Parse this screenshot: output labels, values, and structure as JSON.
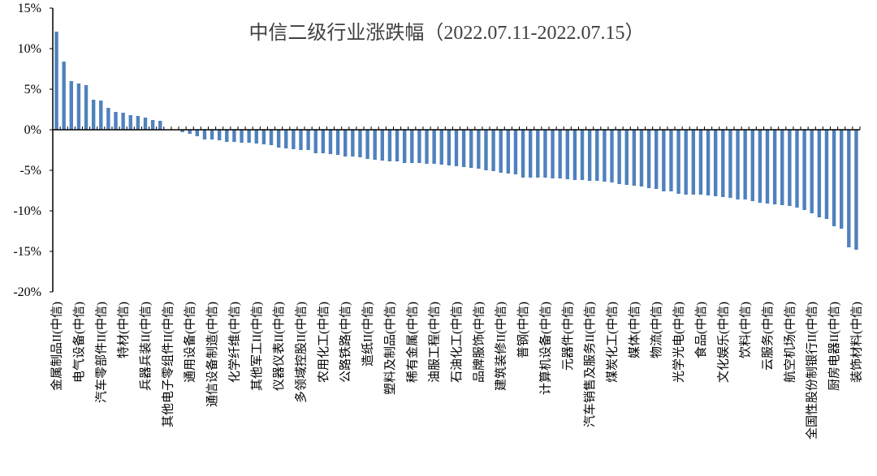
{
  "chart_data": {
    "type": "bar",
    "title": "中信二级行业涨跌幅（2022.07.11-2022.07.15）",
    "xlabel": "",
    "ylabel": "",
    "ylim": [
      -20,
      15
    ],
    "yticks": [
      "15%",
      "10%",
      "5%",
      "0%",
      "-5%",
      "-10%",
      "-15%",
      "-20%"
    ],
    "ytick_values": [
      15,
      10,
      5,
      0,
      -5,
      -10,
      -15,
      -20
    ],
    "grid": false,
    "legend": "none",
    "bar_color": "#4F81BD",
    "categories": [
      "金属制品II(中信)",
      "",
      "",
      "电气设备(中信)",
      "",
      "",
      "汽车零部件II(中信)",
      "",
      "",
      "特材(中信)",
      "",
      "",
      "兵器兵装II(中信)",
      "",
      "",
      "其他电子零组件II(中信)",
      "",
      "",
      "通用设备(中信)",
      "",
      "",
      "通信设备制造(中信)",
      "",
      "",
      "化学纤维(中信)",
      "",
      "",
      "其他军工II(中信)",
      "",
      "",
      "仪器仪表II(中信)",
      "",
      "",
      "多领域控股II(中信)",
      "",
      "",
      "农用化工(中信)",
      "",
      "",
      "公路铁路(中信)",
      "",
      "",
      "造纸II(中信)",
      "",
      "",
      "塑料及制品(中信)",
      "",
      "",
      "稀有金属(中信)",
      "",
      "",
      "油服工程(中信)",
      "",
      "",
      "石油化工(中信)",
      "",
      "",
      "品牌服饰(中信)",
      "",
      "",
      "建筑装修II(中信)",
      "",
      "",
      "普钢(中信)",
      "",
      "",
      "计算机设备(中信)",
      "",
      "",
      "元器件(中信)",
      "",
      "",
      "汽车销售及服务II(中信)",
      "",
      "",
      "煤炭化工(中信)",
      "",
      "",
      "媒体(中信)",
      "",
      "",
      "物流(中信)",
      "",
      "",
      "光学光电(中信)",
      "",
      "",
      "食品(中信)",
      "",
      "",
      "文化娱乐(中信)",
      "",
      "",
      "饮料(中信)",
      "",
      "",
      "云服务(中信)",
      "",
      "",
      "航空机场(中信)",
      "",
      "",
      "全国性股份制银行II(中信)",
      "",
      "",
      "厨房电器II(中信)",
      "",
      "",
      "装饰材料(中信)"
    ],
    "values": [
      12.1,
      8.4,
      6.0,
      5.7,
      5.5,
      3.7,
      3.6,
      2.7,
      2.2,
      2.1,
      1.8,
      1.7,
      1.5,
      1.2,
      1.1,
      0.0,
      0.0,
      -0.3,
      -0.5,
      -0.8,
      -1.2,
      -1.2,
      -1.3,
      -1.5,
      -1.5,
      -1.6,
      -1.6,
      -1.7,
      -1.8,
      -1.9,
      -2.2,
      -2.3,
      -2.4,
      -2.5,
      -2.5,
      -2.9,
      -2.9,
      -3.0,
      -3.1,
      -3.3,
      -3.3,
      -3.4,
      -3.6,
      -3.7,
      -3.8,
      -3.9,
      -3.9,
      -4.1,
      -4.1,
      -4.1,
      -4.2,
      -4.2,
      -4.3,
      -4.4,
      -4.5,
      -4.6,
      -4.7,
      -4.8,
      -5.0,
      -5.1,
      -5.3,
      -5.4,
      -5.5,
      -5.9,
      -5.9,
      -5.9,
      -5.9,
      -6.0,
      -6.0,
      -6.1,
      -6.2,
      -6.2,
      -6.3,
      -6.3,
      -6.4,
      -6.5,
      -6.7,
      -6.8,
      -6.9,
      -7.0,
      -7.2,
      -7.3,
      -7.6,
      -7.6,
      -7.9,
      -8.0,
      -8.0,
      -8.0,
      -8.1,
      -8.2,
      -8.3,
      -8.4,
      -8.6,
      -8.6,
      -8.8,
      -9.0,
      -9.1,
      -9.2,
      -9.3,
      -9.4,
      -9.6,
      -9.9,
      -10.3,
      -10.8,
      -11.0,
      -11.9,
      -12.2,
      -14.5,
      -14.8
    ]
  }
}
